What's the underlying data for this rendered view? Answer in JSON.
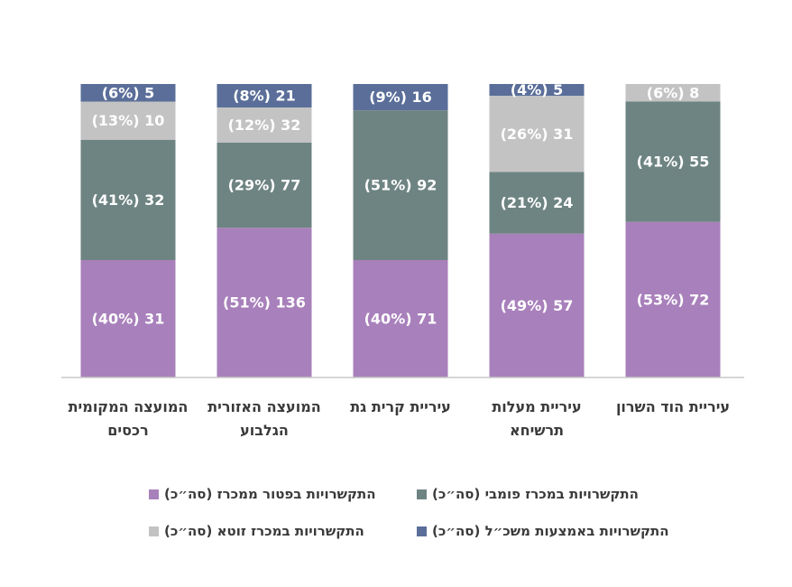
{
  "chart_data": {
    "type": "stacked-bar-100",
    "categories": [
      "המועצה המקומית רכסים",
      "המועצה האזורית הגלבוע",
      "עיריית קרית גת",
      "עיריית מעלות תרשיחא",
      "עיריית הוד השרון"
    ],
    "ylim": [
      0,
      100
    ],
    "series": [
      {
        "name": "התקשרויות בפטור ממכרז (סה״כ)",
        "color": "#a880bb",
        "values": [
          40,
          51,
          40,
          49,
          53
        ],
        "value_labels": [
          "(40%) 31",
          "(51%) 136",
          "(40%) 71",
          "(49%) 57",
          "(53%) 72"
        ]
      },
      {
        "name": "התקשרויות במכרז פומבי (סה״כ)",
        "color": "#6e8482",
        "values": [
          41,
          29,
          51,
          21,
          41
        ],
        "value_labels": [
          "(41%) 32",
          "(29%) 77",
          "(51%) 92",
          "(21%) 24",
          "(41%) 55"
        ]
      },
      {
        "name": "התקשרויות במכרז זוטא (סה״כ)",
        "color": "#c3c3c3",
        "values": [
          13,
          12,
          null,
          26,
          6
        ],
        "value_labels": [
          "(13%) 10",
          "(12%) 32",
          null,
          "(26%) 31",
          "(6%) 8"
        ]
      },
      {
        "name": "התקשרויות באמצעות משכ״ל (סה״כ)",
        "color": "#5a6e99",
        "values": [
          6,
          8,
          9,
          4,
          null
        ],
        "value_labels": [
          "(6%) 5",
          "(8%) 21",
          "(9%) 16",
          "(4%) 5",
          null
        ]
      }
    ]
  }
}
